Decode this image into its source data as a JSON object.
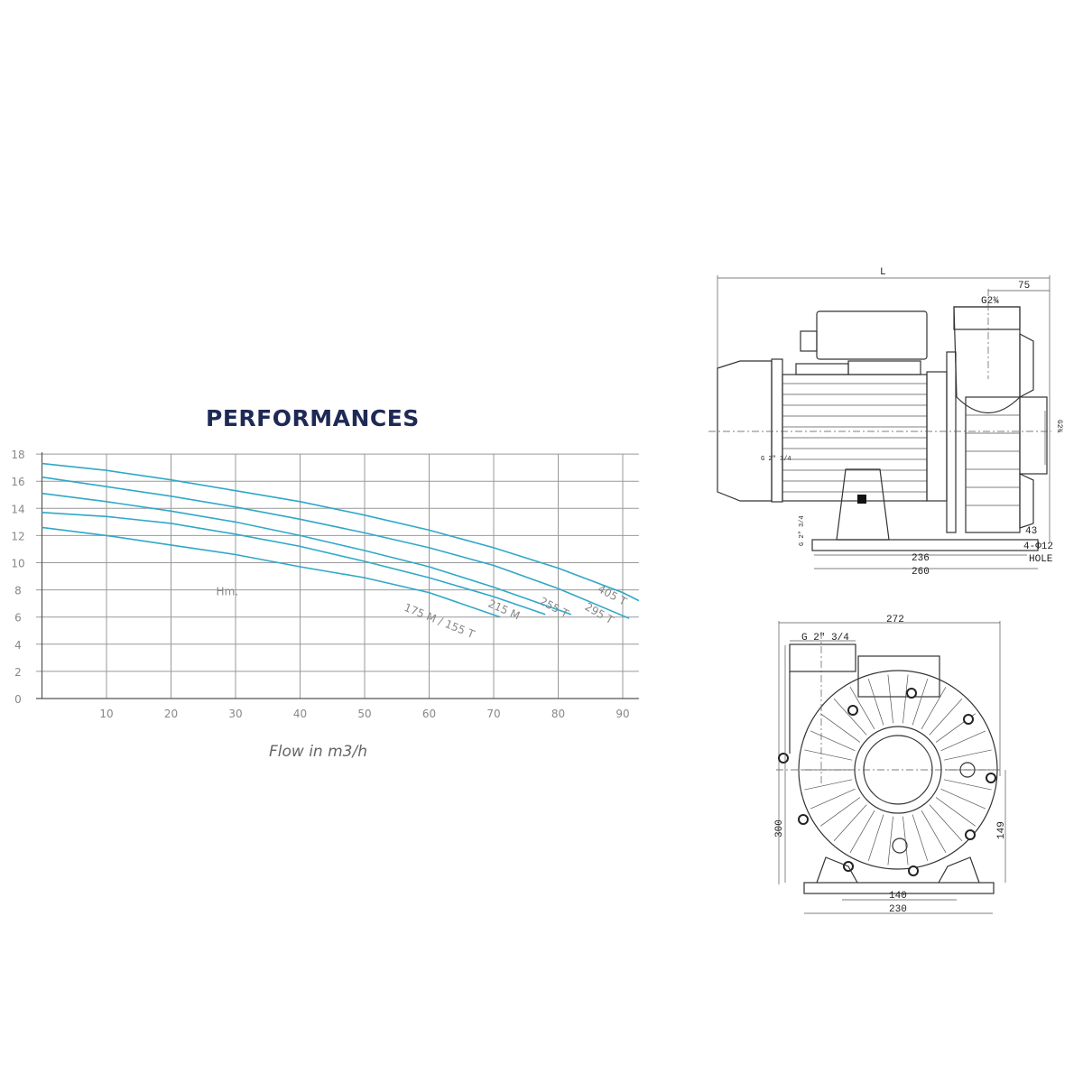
{
  "chart_data": {
    "type": "line",
    "title": "PERFORMANCES",
    "xlabel": "Flow in m3/h",
    "ylabel": "Hm.",
    "xlim": [
      0,
      92.5
    ],
    "ylim": [
      0,
      18
    ],
    "x_ticks": [
      10,
      20,
      30,
      40,
      50,
      60,
      70,
      80,
      90
    ],
    "y_ticks": [
      0,
      2,
      4,
      6,
      8,
      10,
      12,
      14,
      16,
      18
    ],
    "grid": true,
    "line_color": "#2fa8c8",
    "series": [
      {
        "name": "405 T",
        "x": [
          0,
          10,
          20,
          30,
          40,
          50,
          60,
          70,
          80,
          90,
          92.5
        ],
        "y": [
          17.3,
          16.8,
          16.1,
          15.3,
          14.5,
          13.5,
          12.4,
          11.1,
          9.6,
          7.8,
          7.2
        ]
      },
      {
        "name": "295 T",
        "x": [
          0,
          10,
          20,
          30,
          40,
          50,
          60,
          70,
          80,
          91
        ],
        "y": [
          16.3,
          15.6,
          14.9,
          14.1,
          13.2,
          12.2,
          11.1,
          9.8,
          8.1,
          5.9
        ]
      },
      {
        "name": "255 T",
        "x": [
          0,
          10,
          20,
          30,
          40,
          50,
          60,
          70,
          82
        ],
        "y": [
          15.1,
          14.5,
          13.8,
          13.0,
          12.0,
          10.9,
          9.7,
          8.2,
          6.2
        ]
      },
      {
        "name": "215 M",
        "x": [
          0,
          10,
          20,
          30,
          40,
          50,
          60,
          70,
          78
        ],
        "y": [
          13.7,
          13.4,
          12.9,
          12.1,
          11.2,
          10.1,
          8.9,
          7.5,
          6.2
        ]
      },
      {
        "name": "175 M / 155 T",
        "x": [
          0,
          10,
          20,
          30,
          40,
          50,
          60,
          71
        ],
        "y": [
          12.6,
          12.0,
          11.3,
          10.6,
          9.7,
          8.9,
          7.8,
          6.0
        ]
      }
    ]
  },
  "drawings": {
    "side_view": {
      "length": "L",
      "outlet_offset": "75",
      "outlet_thread": "G2¾",
      "inlet_thread": "G2¾",
      "motor_label": "G 2\" 3/4",
      "base_label": "G 2\" 3/4",
      "foot_offset": "43",
      "holes": "4-Φ12",
      "holes_note": "HOLE",
      "hole_spacing": "236",
      "base_length": "260"
    },
    "front_view": {
      "width": "272",
      "thread": "G 2\" 3/4",
      "height": "300",
      "axis_height": "149",
      "hole_spacing": "140",
      "base_width": "230"
    }
  }
}
